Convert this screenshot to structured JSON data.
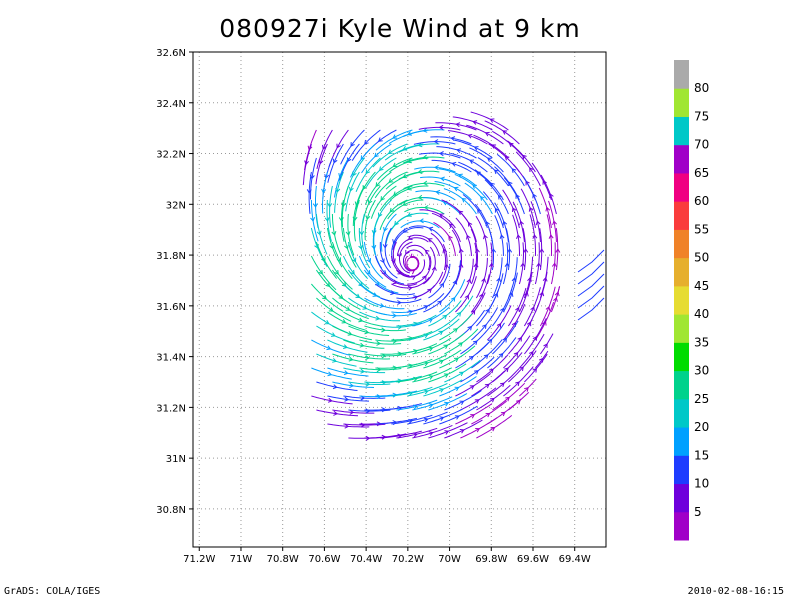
{
  "chart_data": {
    "type": "streamline",
    "title": "080927i Kyle Wind at 9 km",
    "x_ticks": [
      "71.2W",
      "71W",
      "70.8W",
      "70.6W",
      "70.4W",
      "70.2W",
      "70W",
      "69.8W",
      "69.6W",
      "69.4W"
    ],
    "y_ticks": [
      "32.6N",
      "32.4N",
      "32.2N",
      "32N",
      "31.8N",
      "31.6N",
      "31.4N",
      "31.2N",
      "31N",
      "30.8N"
    ],
    "xlim": [
      -71.23,
      -69.25
    ],
    "ylim": [
      30.65,
      32.6
    ],
    "grid": true,
    "colorbar": {
      "labels": [
        "5",
        "10",
        "15",
        "20",
        "25",
        "30",
        "35",
        "40",
        "45",
        "50",
        "55",
        "60",
        "65",
        "70",
        "75",
        "80"
      ],
      "colors": [
        "#a000c8",
        "#6e00dc",
        "#1e3cff",
        "#00a0ff",
        "#00c8c8",
        "#00d28c",
        "#00dc00",
        "#a0e632",
        "#e6dc32",
        "#e6af2d",
        "#f08228",
        "#fa3c3c",
        "#f00082",
        "#a000c8",
        "#00c8c8",
        "#a0e632",
        "#aaaaaa"
      ]
    }
  },
  "footer": {
    "left": "GrADS: COLA/IGES",
    "right": "2010-02-08-16:15"
  }
}
